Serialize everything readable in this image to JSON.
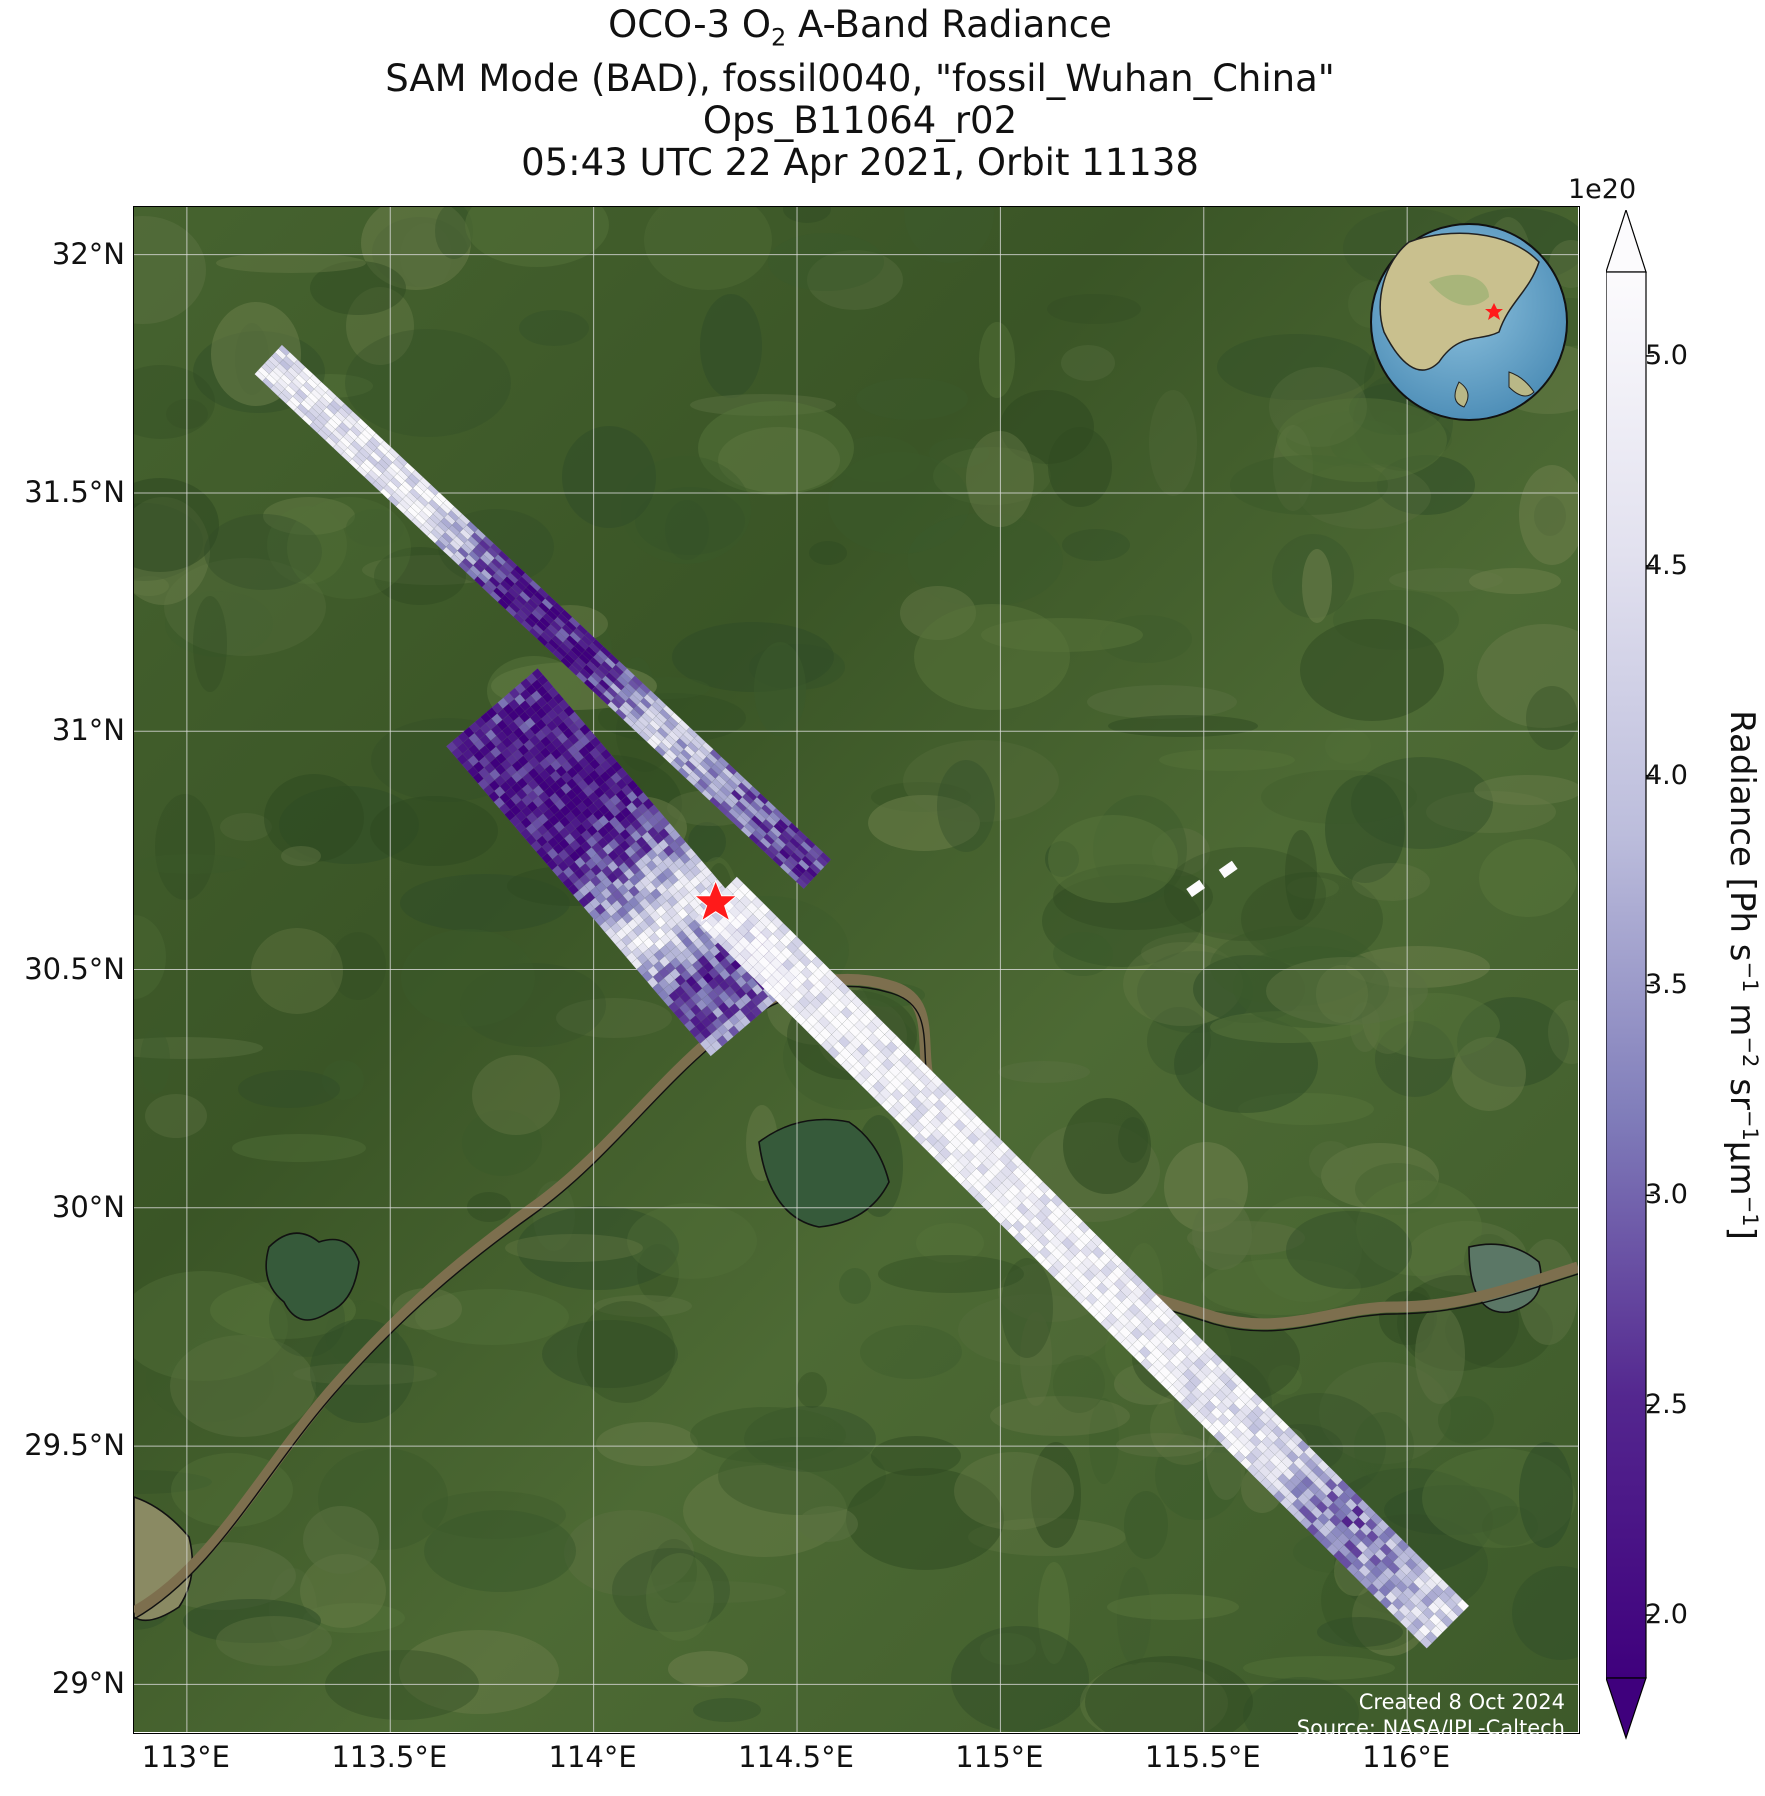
{
  "title": {
    "line1_pre": "OCO-3 O",
    "line1_sub": "2",
    "line1_post": " A-Band Radiance",
    "line2": "SAM Mode (BAD), fossil0040, \"fossil_Wuhan_China\"",
    "line3": "Ops_B11064_r02",
    "line4": "05:43 UTC 22 Apr 2021, Orbit 11138"
  },
  "map": {
    "lon_range": [
      112.87,
      116.42
    ],
    "lat_range": [
      28.9,
      32.1
    ],
    "lon_ticks": [
      "113°E",
      "113.5°E",
      "114°E",
      "114.5°E",
      "115°E",
      "115.5°E",
      "116°E"
    ],
    "lon_tick_values": [
      113.0,
      113.5,
      114.0,
      114.5,
      115.0,
      115.5,
      116.0
    ],
    "lat_ticks": [
      "32°N",
      "31.5°N",
      "31°N",
      "30.5°N",
      "30°N",
      "29.5°N",
      "29°N"
    ],
    "lat_tick_values": [
      32.0,
      31.5,
      31.0,
      30.5,
      30.0,
      29.5,
      29.0
    ],
    "grid": true,
    "basemap": "satellite imagery",
    "target": {
      "name": "fossil_Wuhan_China",
      "lon": 114.3,
      "lat": 30.64,
      "marker": "red star"
    },
    "inset": "globe centered on East Asia with red star at target",
    "credit_line1": "Created 8 Oct 2024",
    "credit_line2": "Source: NASA/JPL-Caltech"
  },
  "colorbar": {
    "multiplier": "1e20",
    "label_pre": "Radiance [Ph s",
    "label_post": "]",
    "label_sup1": "−1",
    "label_mid1": " m",
    "label_sup2": "−2",
    "label_mid2": " sr",
    "label_sup3": "−1",
    "label_mid3": "µm",
    "label_sup4": "−1",
    "ticks": [
      "5.0",
      "4.5",
      "4.0",
      "3.5",
      "3.0",
      "2.5",
      "2.0"
    ],
    "tick_values": [
      5.0,
      4.5,
      4.0,
      3.5,
      3.0,
      2.5,
      2.0
    ],
    "range": [
      1.85,
      5.2
    ],
    "extend": "both",
    "colormap": "Purples_r",
    "colors": {
      "low": "#3f007d",
      "mid": "#807dba",
      "high": "#fcfbfd"
    }
  },
  "chart_data": {
    "type": "heatmap",
    "description_units": "radiance in 1e20 Ph s-1 m-2 sr-1 um-1",
    "swaths": [
      {
        "start": [
          113.2,
          31.78
        ],
        "end": [
          114.55,
          30.7
        ],
        "value_profile": [
          4.6,
          4.9,
          4.7,
          2.4,
          2.2,
          4.2,
          3.0,
          2.6
        ]
      },
      {
        "start": [
          113.75,
          31.05
        ],
        "end": [
          114.4,
          30.4
        ],
        "value_profile": [
          2.4,
          2.2,
          2.1,
          3.0,
          4.8,
          2.6,
          3.4
        ]
      },
      {
        "start": [
          114.3,
          30.65
        ],
        "end": [
          116.1,
          29.12
        ],
        "value_profile": [
          4.9,
          5.0,
          5.0,
          5.0,
          5.0,
          4.8,
          3.2,
          4.6
        ]
      }
    ],
    "value_range": [
      1.85,
      5.2
    ]
  }
}
